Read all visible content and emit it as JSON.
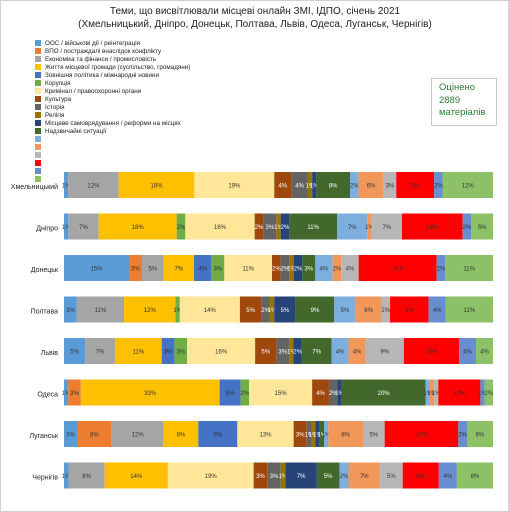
{
  "chart_data": {
    "type": "bar",
    "stacked": "percent",
    "orientation": "horizontal",
    "title": "Теми, що висвітлювали місцеві онлайн ЗМІ, ІДПО, січень 2021",
    "subtitle": "(Хмельницький, Дніпро, Донецьк, Полтава, Львів, Одеса, Луганськ, Чернігів)",
    "annotation": "Оцінено\n2889\nматеріалів",
    "legend_position": "top-left",
    "grid": false,
    "categories": [
      "Хмельницький",
      "Дніпро",
      "Донецьк",
      "Полтава",
      "Львів",
      "Одеса",
      "Луганськ",
      "Чернігів"
    ],
    "series": [
      {
        "name": "ООС / військові дії / реінтеграція",
        "color": "#5B9BD5",
        "values": [
          1,
          1,
          15,
          3,
          5,
          1,
          3,
          1
        ]
      },
      {
        "name": "ВПО / постраждалі внаслідок конфлікту",
        "color": "#ED7D31",
        "values": [
          0,
          0,
          3,
          0,
          0,
          3,
          8,
          0
        ]
      },
      {
        "name": "Економіка та фінанси / промисловість",
        "color": "#A5A5A5",
        "values": [
          12,
          7,
          5,
          11,
          7,
          0,
          12,
          8
        ]
      },
      {
        "name": "Життя місцевої громади (суспільство, громадяни)",
        "color": "#FFC000",
        "values": [
          18,
          18,
          7,
          12,
          11,
          33,
          8,
          14
        ]
      },
      {
        "name": "Зовнішня політика / міжнародні новини",
        "color": "#4472C4",
        "values": [
          0,
          0,
          4,
          0,
          3,
          5,
          9,
          0
        ]
      },
      {
        "name": "Корупція",
        "color": "#70AD47",
        "values": [
          0,
          2,
          3,
          1,
          3,
          2,
          0,
          0
        ]
      },
      {
        "name": "Кримінал / правоохоронні органи",
        "color": "#FFE699",
        "values": [
          19,
          16,
          11,
          14,
          16,
          15,
          13,
          19
        ]
      },
      {
        "name": "Культура",
        "color": "#9E480E",
        "values": [
          4,
          2,
          2,
          5,
          5,
          4,
          3,
          3
        ]
      },
      {
        "name": "Історія",
        "color": "#636363",
        "values": [
          4,
          3,
          2,
          2,
          3,
          2,
          1,
          3
        ]
      },
      {
        "name": "Релігія",
        "color": "#997300",
        "values": [
          1,
          1,
          1,
          1,
          1,
          0,
          1,
          1
        ]
      },
      {
        "name": "Місцеве самоврядування / реформи на місцях",
        "color": "#264478",
        "values": [
          1,
          2,
          2,
          5,
          2,
          1,
          1,
          7
        ]
      },
      {
        "name": "Надзвичайні ситуації",
        "color": "#43682B",
        "values": [
          8,
          11,
          3,
          9,
          7,
          20,
          1,
          5
        ]
      },
      {
        "name": "",
        "color": "#7CAFDD",
        "values": [
          2,
          7,
          4,
          5,
          4,
          1,
          1,
          2
        ]
      },
      {
        "name": "",
        "color": "#F1975A",
        "values": [
          6,
          1,
          2,
          6,
          4,
          1,
          8,
          7
        ]
      },
      {
        "name": "",
        "color": "#B7B7B7",
        "values": [
          3,
          7,
          4,
          2,
          9,
          1,
          5,
          5
        ]
      },
      {
        "name": "",
        "color": "#FF0000",
        "values": [
          9,
          14,
          18,
          9,
          13,
          10,
          17,
          8
        ]
      },
      {
        "name": "",
        "color": "#698ED0",
        "values": [
          2,
          2,
          2,
          4,
          4,
          1,
          2,
          4
        ]
      },
      {
        "name": "",
        "color": "#8CC168",
        "values": [
          12,
          5,
          11,
          11,
          4,
          2,
          6,
          8
        ]
      }
    ]
  }
}
